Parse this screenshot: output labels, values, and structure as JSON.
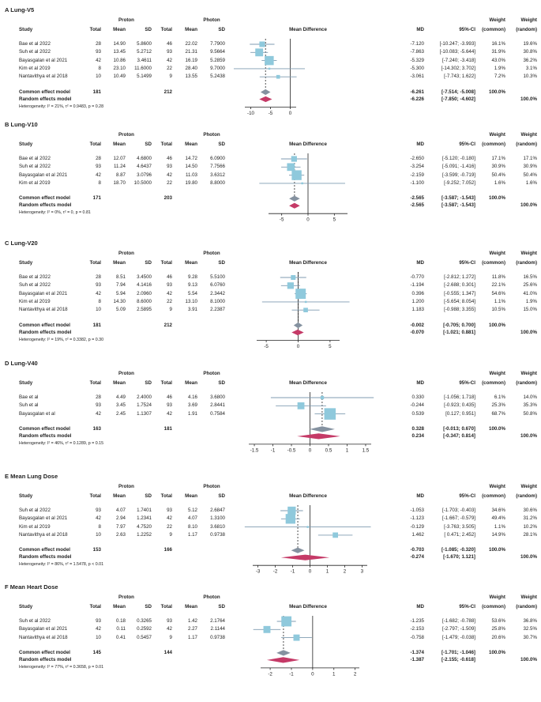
{
  "headers": {
    "study": "Study",
    "proton": "Proton",
    "photon": "Photon",
    "total": "Total",
    "mean": "Mean",
    "sd": "SD",
    "mean_difference": "Mean Difference",
    "md": "MD",
    "ci": "95%-CI",
    "weight": "Weight",
    "common": "(common)",
    "random": "(random)"
  },
  "colors": {
    "box": "#8fc9dc",
    "ci_line": "#7f9bb0",
    "common_diamond": "#8592a0",
    "random_diamond": "#c53a67",
    "axis": "#222222"
  },
  "chart_data": [
    {
      "type": "forest",
      "letter": "A",
      "title": "Lung-V5",
      "ticks": [
        -10,
        -5,
        0
      ],
      "xlim": [
        -11.5,
        1.5
      ],
      "studies": [
        {
          "name": "Bae et al 2022",
          "p_total": "28",
          "p_mean": "14.90",
          "p_sd": "5.8600",
          "c_total": "46",
          "c_mean": "22.02",
          "c_sd": "7.7900",
          "md": -7.12,
          "lo": -10.247,
          "hi": -3.993,
          "md_text": "-7.120",
          "ci_text": "[-10.247; -3.993]",
          "w_common": "16.1%",
          "w_random": "19.6%",
          "w": 16.1
        },
        {
          "name": "Suh et al 2022",
          "p_total": "93",
          "p_mean": "13.45",
          "p_sd": "5.2712",
          "c_total": "93",
          "c_mean": "21.31",
          "c_sd": "9.5664",
          "md": -7.863,
          "lo": -10.083,
          "hi": -5.644,
          "md_text": "-7.863",
          "ci_text": "[-10.083; -5.644]",
          "w_common": "31.9%",
          "w_random": "30.8%",
          "w": 31.9
        },
        {
          "name": "Bayasgalan et al 2021",
          "p_total": "42",
          "p_mean": "10.86",
          "p_sd": "3.4611",
          "c_total": "42",
          "c_mean": "16.19",
          "c_sd": "5.2859",
          "md": -5.329,
          "lo": -7.24,
          "hi": -3.418,
          "md_text": "-5.329",
          "ci_text": "[-7.240; -3.418]",
          "w_common": "43.0%",
          "w_random": "36.2%",
          "w": 43.0
        },
        {
          "name": "Kim et al 2019",
          "p_total": "8",
          "p_mean": "23.10",
          "p_sd": "11.6000",
          "c_total": "22",
          "c_mean": "28.40",
          "c_sd": "9.7000",
          "md": -5.3,
          "lo": -14.302,
          "hi": 3.702,
          "md_text": "-5.300",
          "ci_text": "[-14.302; 3.702]",
          "w_common": "1.9%",
          "w_random": "3.1%",
          "w": 1.9
        },
        {
          "name": "Nantavithya et al 2018",
          "p_total": "10",
          "p_mean": "10.49",
          "p_sd": "5.1499",
          "c_total": "9",
          "c_mean": "13.55",
          "c_sd": "5.2438",
          "md": -3.061,
          "lo": -7.743,
          "hi": 1.622,
          "md_text": "-3.061",
          "ci_text": "[-7.743; 1.622]",
          "w_common": "7.2%",
          "w_random": "10.3%",
          "w": 7.2
        }
      ],
      "common": {
        "label": "Common effect model",
        "p_total": "181",
        "c_total": "212",
        "md": -6.261,
        "lo": -7.514,
        "hi": -5.008,
        "md_text": "-6.261",
        "ci_text": "[-7.514; -5.008]",
        "weight": "100.0%"
      },
      "random": {
        "label": "Random effects model",
        "md": -6.226,
        "lo": -7.85,
        "hi": -4.602,
        "md_text": "-6.226",
        "ci_text": "[-7.850; -4.602]",
        "weight": "100.0%"
      },
      "heterogeneity": "Heterogeneity: I² = 21%, τ² = 0.9483, p = 0.28"
    },
    {
      "type": "forest",
      "letter": "B",
      "title": "Lung-V10",
      "ticks": [
        -5,
        0,
        5
      ],
      "xlim": [
        -7.5,
        7.5
      ],
      "studies": [
        {
          "name": "Bae et al 2022",
          "p_total": "28",
          "p_mean": "12.07",
          "p_sd": "4.6800",
          "c_total": "46",
          "c_mean": "14.72",
          "c_sd": "6.0900",
          "md": -2.65,
          "lo": -5.12,
          "hi": -0.18,
          "md_text": "-2.650",
          "ci_text": "[-5.120; -0.180]",
          "w_common": "17.1%",
          "w_random": "17.1%",
          "w": 17.1
        },
        {
          "name": "Suh et al 2022",
          "p_total": "93",
          "p_mean": "11.24",
          "p_sd": "4.6437",
          "c_total": "93",
          "c_mean": "14.50",
          "c_sd": "7.7566",
          "md": -3.254,
          "lo": -5.091,
          "hi": -1.416,
          "md_text": "-3.254",
          "ci_text": "[-5.091; -1.416]",
          "w_common": "30.9%",
          "w_random": "30.9%",
          "w": 30.9
        },
        {
          "name": "Bayasgalan et al 2021",
          "p_total": "42",
          "p_mean": "8.87",
          "p_sd": "3.0796",
          "c_total": "42",
          "c_mean": "11.03",
          "c_sd": "3.6312",
          "md": -2.159,
          "lo": -3.599,
          "hi": -0.719,
          "md_text": "-2.159",
          "ci_text": "[-3.599; -0.719]",
          "w_common": "50.4%",
          "w_random": "50.4%",
          "w": 50.4
        },
        {
          "name": "Kim et al 2019",
          "p_total": "8",
          "p_mean": "18.70",
          "p_sd": "10.5000",
          "c_total": "22",
          "c_mean": "19.80",
          "c_sd": "8.8000",
          "md": -1.1,
          "lo": -9.252,
          "hi": 7.052,
          "md_text": "-1.100",
          "ci_text": "[-9.252; 7.052]",
          "w_common": "1.6%",
          "w_random": "1.6%",
          "w": 1.6
        }
      ],
      "common": {
        "label": "Common effect model",
        "p_total": "171",
        "c_total": "203",
        "md": -2.565,
        "lo": -3.587,
        "hi": -1.543,
        "md_text": "-2.565",
        "ci_text": "[-3.587; -1.543]",
        "weight": "100.0%"
      },
      "random": {
        "label": "Random effects model",
        "md": -2.565,
        "lo": -3.587,
        "hi": -1.543,
        "md_text": "-2.565",
        "ci_text": "[-3.587; -1.543]",
        "weight": "100.0%"
      },
      "heterogeneity": "Heterogeneity: I² = 0%, τ² = 0, p = 0.81"
    },
    {
      "type": "forest",
      "letter": "C",
      "title": "Lung-V20",
      "ticks": [
        -5,
        0,
        5
      ],
      "xlim": [
        -6.5,
        6.5
      ],
      "studies": [
        {
          "name": "Bae et al 2022",
          "p_total": "28",
          "p_mean": "8.51",
          "p_sd": "3.4500",
          "c_total": "46",
          "c_mean": "9.28",
          "c_sd": "5.5100",
          "md": -0.77,
          "lo": -2.812,
          "hi": 1.272,
          "md_text": "-0.770",
          "ci_text": "[-2.812; 1.272]",
          "w_common": "11.8%",
          "w_random": "16.5%",
          "w": 11.8
        },
        {
          "name": "Suh et al 2022",
          "p_total": "93",
          "p_mean": "7.94",
          "p_sd": "4.1416",
          "c_total": "93",
          "c_mean": "9.13",
          "c_sd": "6.0760",
          "md": -1.194,
          "lo": -2.688,
          "hi": 0.301,
          "md_text": "-1.194",
          "ci_text": "[-2.688; 0.301]",
          "w_common": "22.1%",
          "w_random": "25.6%",
          "w": 22.1
        },
        {
          "name": "Bayasgalan et al 2021",
          "p_total": "42",
          "p_mean": "5.94",
          "p_sd": "2.0960",
          "c_total": "42",
          "c_mean": "5.54",
          "c_sd": "2.3442",
          "md": 0.396,
          "lo": -0.555,
          "hi": 1.347,
          "md_text": "0.396",
          "ci_text": "[-0.555; 1.347]",
          "w_common": "54.6%",
          "w_random": "41.0%",
          "w": 54.6
        },
        {
          "name": "Kim et al 2019",
          "p_total": "8",
          "p_mean": "14.30",
          "p_sd": "8.6000",
          "c_total": "22",
          "c_mean": "13.10",
          "c_sd": "8.1000",
          "md": 1.2,
          "lo": -5.654,
          "hi": 8.054,
          "md_text": "1.200",
          "ci_text": "[-5.654; 8.054]",
          "w_common": "1.1%",
          "w_random": "1.9%",
          "w": 1.1
        },
        {
          "name": "Nantavithya et al 2018",
          "p_total": "10",
          "p_mean": "5.09",
          "p_sd": "2.5895",
          "c_total": "9",
          "c_mean": "3.91",
          "c_sd": "2.2387",
          "md": 1.183,
          "lo": -0.988,
          "hi": 3.355,
          "md_text": "1.183",
          "ci_text": "[-0.988; 3.355]",
          "w_common": "10.5%",
          "w_random": "15.0%",
          "w": 10.5
        }
      ],
      "common": {
        "label": "Common effect model",
        "p_total": "181",
        "c_total": "212",
        "md": -0.002,
        "lo": -0.705,
        "hi": 0.7,
        "md_text": "-0.002",
        "ci_text": "[-0.705; 0.700]",
        "weight": "100.0%"
      },
      "random": {
        "label": "Random effects model",
        "md": -0.07,
        "lo": -1.021,
        "hi": 0.881,
        "md_text": "-0.070",
        "ci_text": "[-1.021; 0.881]",
        "weight": "100.0%"
      },
      "heterogeneity": "Heterogeneity: I² = 19%, τ² = 0.3382, p = 0.30"
    },
    {
      "type": "forest",
      "letter": "D",
      "title": "Lung-V40",
      "ticks": [
        -1.5,
        -1,
        -0.5,
        0,
        0.5,
        1,
        1.5
      ],
      "xlim": [
        -1.65,
        1.65
      ],
      "studies": [
        {
          "name": "Bae et al",
          "p_total": "28",
          "p_mean": "4.49",
          "p_sd": "2.4000",
          "c_total": "46",
          "c_mean": "4.16",
          "c_sd": "3.6800",
          "md": 0.33,
          "lo": -1.056,
          "hi": 1.718,
          "md_text": "0.330",
          "ci_text": "[-1.056; 1.718]",
          "w_common": "6.1%",
          "w_random": "14.0%",
          "w": 6.1
        },
        {
          "name": "Suh et al",
          "p_total": "93",
          "p_mean": "3.45",
          "p_sd": "1.7524",
          "c_total": "93",
          "c_mean": "3.69",
          "c_sd": "2.8441",
          "md": -0.244,
          "lo": -0.923,
          "hi": 0.435,
          "md_text": "-0.244",
          "ci_text": "[-0.923; 0.435]",
          "w_common": "25.3%",
          "w_random": "35.3%",
          "w": 25.3
        },
        {
          "name": "Bayasgalan et al",
          "p_total": "42",
          "p_mean": "2.45",
          "p_sd": "1.1307",
          "c_total": "42",
          "c_mean": "1.91",
          "c_sd": "0.7584",
          "md": 0.539,
          "lo": 0.127,
          "hi": 0.951,
          "md_text": "0.539",
          "ci_text": "[0.127; 0.951]",
          "w_common": "68.7%",
          "w_random": "50.8%",
          "w": 68.7
        }
      ],
      "common": {
        "label": "Common effect model",
        "p_total": "163",
        "c_total": "181",
        "md": 0.328,
        "lo": -0.013,
        "hi": 0.67,
        "md_text": "0.328",
        "ci_text": "[-0.013; 0.670]",
        "weight": "100.0%"
      },
      "random": {
        "label": "Random effects model",
        "md": 0.234,
        "lo": -0.347,
        "hi": 0.814,
        "md_text": "0.234",
        "ci_text": "[-0.347; 0.814]",
        "weight": "100.0%"
      },
      "heterogeneity": "Heterogeneity: I² = 46%, τ² = 0.1289, p = 0.15"
    },
    {
      "type": "forest",
      "letter": "E",
      "title": "Mean Lung Dose",
      "ticks": [
        -3,
        -2,
        -1,
        0,
        1,
        2,
        3
      ],
      "xlim": [
        -3.3,
        3.3
      ],
      "studies": [
        {
          "name": "Suh et al 2022",
          "p_total": "93",
          "p_mean": "4.07",
          "p_sd": "1.7401",
          "c_total": "93",
          "c_mean": "5.12",
          "c_sd": "2.6847",
          "md": -1.053,
          "lo": -1.703,
          "hi": -0.403,
          "md_text": "-1.053",
          "ci_text": "[-1.703; -0.403]",
          "w_common": "34.6%",
          "w_random": "30.6%",
          "w": 34.6
        },
        {
          "name": "Bayasgalan et al 2021",
          "p_total": "42",
          "p_mean": "2.94",
          "p_sd": "1.2341",
          "c_total": "42",
          "c_mean": "4.07",
          "c_sd": "1.3100",
          "md": -1.123,
          "lo": -1.667,
          "hi": -0.579,
          "md_text": "-1.123",
          "ci_text": "[-1.667; -0.579]",
          "w_common": "49.4%",
          "w_random": "31.2%",
          "w": 49.4
        },
        {
          "name": "Kim et al 2019",
          "p_total": "8",
          "p_mean": "7.97",
          "p_sd": "4.7520",
          "c_total": "22",
          "c_mean": "8.10",
          "c_sd": "3.6810",
          "md": -0.129,
          "lo": -3.763,
          "hi": 3.505,
          "md_text": "-0.129",
          "ci_text": "[-3.763; 3.505]",
          "w_common": "1.1%",
          "w_random": "10.2%",
          "w": 1.1
        },
        {
          "name": "Nantavithya et al 2018",
          "p_total": "10",
          "p_mean": "2.63",
          "p_sd": "1.2252",
          "c_total": "9",
          "c_mean": "1.17",
          "c_sd": "0.9738",
          "md": 1.462,
          "lo": 0.471,
          "hi": 2.452,
          "md_text": "1.462",
          "ci_text": "[ 0.471; 2.452]",
          "w_common": "14.9%",
          "w_random": "28.1%",
          "w": 14.9
        }
      ],
      "common": {
        "label": "Common effect model",
        "p_total": "153",
        "c_total": "166",
        "md": -0.703,
        "lo": -1.085,
        "hi": -0.32,
        "md_text": "-0.703",
        "ci_text": "[-1.085; -0.320]",
        "weight": "100.0%"
      },
      "random": {
        "label": "Random effects model",
        "md": -0.274,
        "lo": -1.67,
        "hi": 1.121,
        "md_text": "-0.274",
        "ci_text": "[-1.670; 1.121]",
        "weight": "100.0%"
      },
      "heterogeneity": "Heterogeneity: I² = 86%, τ² = 1.5478, p < 0.01"
    },
    {
      "type": "forest",
      "letter": "F",
      "title": "Mean Heart Dose",
      "ticks": [
        -2,
        -1,
        0,
        1,
        2
      ],
      "xlim": [
        -2.45,
        2.2
      ],
      "studies": [
        {
          "name": "Suh et al 2022",
          "p_total": "93",
          "p_mean": "0.18",
          "p_sd": "0.3265",
          "c_total": "93",
          "c_mean": "1.42",
          "c_sd": "2.1764",
          "md": -1.235,
          "lo": -1.682,
          "hi": -0.788,
          "md_text": "-1.235",
          "ci_text": "[-1.682; -0.788]",
          "w_common": "53.6%",
          "w_random": "36.8%",
          "w": 53.6
        },
        {
          "name": "Bayasgalan et al 2021",
          "p_total": "42",
          "p_mean": "0.11",
          "p_sd": "0.2592",
          "c_total": "42",
          "c_mean": "2.27",
          "c_sd": "2.1144",
          "md": -2.153,
          "lo": -2.797,
          "hi": -1.509,
          "md_text": "-2.153",
          "ci_text": "[-2.797; -1.509]",
          "w_common": "25.8%",
          "w_random": "32.5%",
          "w": 25.8
        },
        {
          "name": "Nantavithya et al 2018",
          "p_total": "10",
          "p_mean": "0.41",
          "p_sd": "0.5457",
          "c_total": "9",
          "c_mean": "1.17",
          "c_sd": "0.9738",
          "md": -0.758,
          "lo": -1.479,
          "hi": -0.038,
          "md_text": "-0.758",
          "ci_text": "[-1.479; -0.038]",
          "w_common": "20.6%",
          "w_random": "30.7%",
          "w": 20.6
        }
      ],
      "common": {
        "label": "Common effect model",
        "p_total": "145",
        "c_total": "144",
        "md": -1.374,
        "lo": -1.701,
        "hi": -1.046,
        "md_text": "-1.374",
        "ci_text": "[-1.701; -1.046]",
        "weight": "100.0%"
      },
      "random": {
        "label": "Random effects model",
        "md": -1.387,
        "lo": -2.155,
        "hi": -0.618,
        "md_text": "-1.387",
        "ci_text": "[-2.155; -0.618]",
        "weight": "100.0%"
      },
      "heterogeneity": "Heterogeneity: I² = 77%, τ² = 0.3658, p = 0.01"
    }
  ]
}
